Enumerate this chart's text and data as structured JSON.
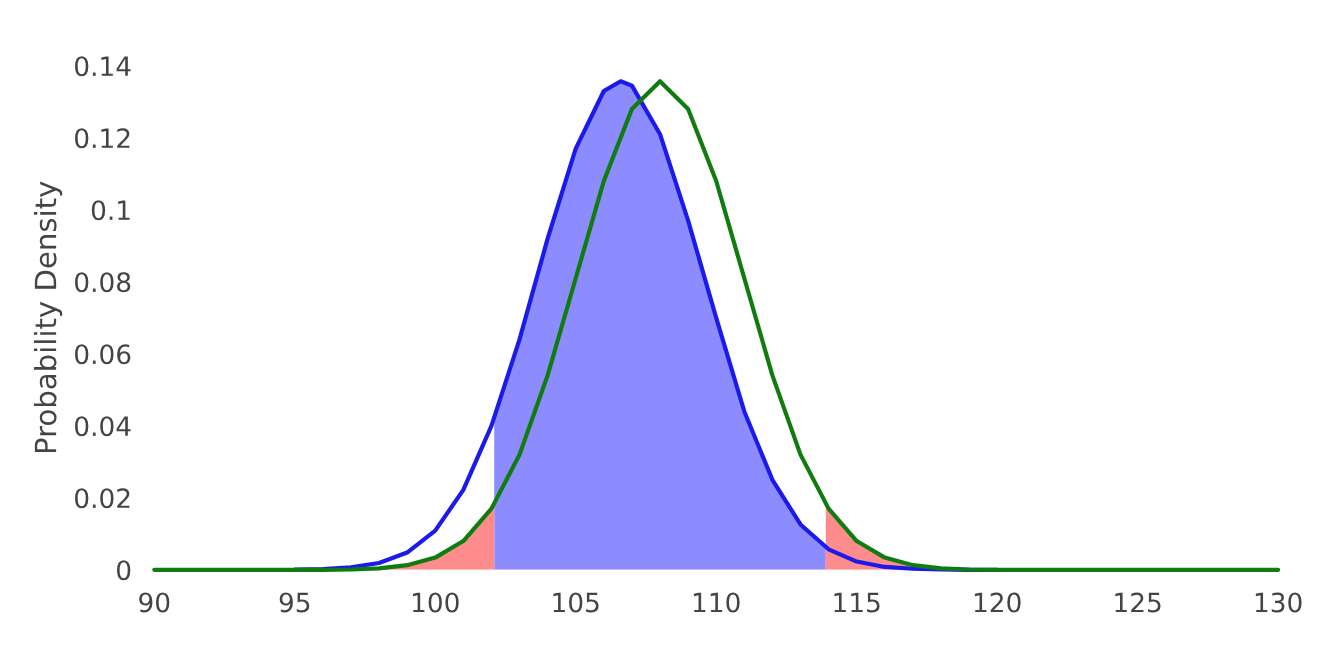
{
  "chart_data": {
    "type": "line",
    "ylabel": "Probability Density",
    "xlim": [
      90,
      130
    ],
    "xticks": [
      90,
      95,
      100,
      105,
      110,
      115,
      120,
      125,
      130
    ],
    "ylim": [
      0,
      0.14
    ],
    "yticks": [
      0,
      0.02,
      0.04,
      0.06,
      0.08,
      0.1,
      0.12,
      0.14
    ],
    "grid": false,
    "legend": false,
    "series": [
      {
        "type": "area",
        "color": "#8c8cff",
        "x": [
          102.1,
          103,
          104,
          105,
          106,
          106.6,
          107,
          108,
          109,
          110,
          111,
          112,
          113,
          113.9
        ],
        "values": [
          0.041,
          0.064,
          0.092,
          0.117,
          0.133,
          0.1357,
          0.1345,
          0.121,
          0.097,
          0.07,
          0.044,
          0.025,
          0.0126,
          0.006
        ]
      },
      {
        "type": "area",
        "color": "#ff8c8c",
        "x": [
          90,
          95,
          96,
          97,
          98,
          99,
          100,
          101,
          102,
          102.1
        ],
        "values": [
          0,
          0,
          0,
          0.0001,
          0.0004,
          0.0013,
          0.0034,
          0.008,
          0.017,
          0.018
        ]
      },
      {
        "type": "area",
        "color": "#ff8c8c",
        "x": [
          113.9,
          114,
          115,
          116,
          117,
          118,
          119,
          120,
          130
        ],
        "values": [
          0.018,
          0.017,
          0.008,
          0.0034,
          0.0013,
          0.0004,
          0.0001,
          0,
          0
        ]
      },
      {
        "color": "#1a1aeb",
        "x": [
          95,
          96,
          97,
          98,
          99,
          100,
          101,
          102,
          103,
          104,
          105,
          106,
          106.6,
          107,
          108,
          109,
          110,
          111,
          112,
          113,
          114,
          115,
          116,
          117,
          118,
          119,
          120
        ],
        "values": [
          0.0001,
          0.0002,
          0.0007,
          0.0019,
          0.0048,
          0.0109,
          0.0222,
          0.04,
          0.064,
          0.092,
          0.117,
          0.133,
          0.1357,
          0.1345,
          0.121,
          0.097,
          0.07,
          0.044,
          0.025,
          0.0126,
          0.0057,
          0.0023,
          0.0008,
          0.0003,
          0.0001,
          0,
          0
        ]
      },
      {
        "color": "#107c10",
        "x": [
          90,
          95,
          96,
          97,
          98,
          99,
          100,
          101,
          102,
          103,
          104,
          105,
          106,
          107,
          108,
          109,
          110,
          111,
          112,
          113,
          114,
          115,
          116,
          117,
          118,
          119,
          120,
          125,
          130
        ],
        "values": [
          0,
          0,
          0,
          0.0001,
          0.0004,
          0.0013,
          0.0034,
          0.008,
          0.017,
          0.032,
          0.054,
          0.081,
          0.108,
          0.128,
          0.1357,
          0.128,
          0.108,
          0.081,
          0.054,
          0.032,
          0.017,
          0.008,
          0.0034,
          0.0013,
          0.0004,
          0.0001,
          0,
          0,
          0
        ]
      }
    ]
  }
}
